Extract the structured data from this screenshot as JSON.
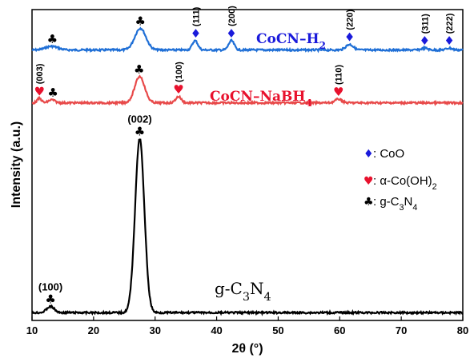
{
  "chart_data": {
    "type": "line",
    "xlabel": "2θ (°)",
    "ylabel": "Intensity (a.u.)",
    "xlim": [
      10,
      80
    ],
    "xticks": [
      10,
      20,
      30,
      40,
      50,
      60,
      70,
      80
    ],
    "grid": false,
    "legend_position": "middle-right",
    "legend": [
      {
        "symbol": "♦",
        "text": ": CoO",
        "color": "#1a1adb"
      },
      {
        "symbol": "♥",
        "text": ": α-Co(OH)",
        "sub": "2",
        "color": "#e8112d"
      },
      {
        "symbol": "♣",
        "text": ": g-C",
        "sub1": "3",
        "mid": "N",
        "sub2": "4",
        "color": "#000000"
      }
    ],
    "series": [
      {
        "name": "CoCN–H",
        "name_sub": "2",
        "color": "#1f6fd6",
        "baseline_frac": 0.13,
        "peaks": [
          [
            13.2,
            0.012,
            1.0
          ],
          [
            27.6,
            0.07,
            0.9
          ],
          [
            36.5,
            0.03,
            0.45
          ],
          [
            42.4,
            0.03,
            0.45
          ],
          [
            61.6,
            0.018,
            0.6
          ],
          [
            73.8,
            0.006,
            0.5
          ],
          [
            77.8,
            0.006,
            0.5
          ]
        ],
        "annotations": [
          {
            "x": 13.3,
            "sym": "♣",
            "color": "#000000"
          },
          {
            "x": 27.6,
            "sym": "♣",
            "color": "#000000"
          },
          {
            "x": 36.6,
            "sym": "♦",
            "color": "#1a1adb",
            "label": "(111)"
          },
          {
            "x": 42.4,
            "sym": "♦",
            "color": "#1a1adb",
            "label": "(200)"
          },
          {
            "x": 61.6,
            "sym": "♦",
            "color": "#1a1adb",
            "label": "(220)"
          },
          {
            "x": 73.8,
            "sym": "♦",
            "color": "#1a1adb",
            "label": "(311)"
          },
          {
            "x": 77.8,
            "sym": "♦",
            "color": "#1a1adb",
            "label": "(222)"
          }
        ]
      },
      {
        "name": "CoCN–NaBH",
        "name_sub": "4",
        "color": "#e84a4a",
        "baseline_frac": 0.3,
        "peaks": [
          [
            11.2,
            0.014,
            0.35
          ],
          [
            13.2,
            0.01,
            0.5
          ],
          [
            27.5,
            0.085,
            0.8
          ],
          [
            33.8,
            0.02,
            0.45
          ],
          [
            59.8,
            0.012,
            0.55
          ]
        ],
        "annotations": [
          {
            "x": 11.2,
            "sym": "♥",
            "color": "#e8112d",
            "label": "(003)"
          },
          {
            "x": 13.4,
            "sym": "♣",
            "color": "#000000"
          },
          {
            "x": 27.4,
            "sym": "♣",
            "color": "#000000"
          },
          {
            "x": 33.8,
            "sym": "♥",
            "color": "#e8112d",
            "label": "(100)"
          },
          {
            "x": 59.8,
            "sym": "♥",
            "color": "#e8112d",
            "label": "(110)"
          }
        ]
      },
      {
        "name": "g-C",
        "name_sub1": "3",
        "name_mid": "N",
        "name_sub2": "4",
        "color": "#000000",
        "baseline_frac": 0.975,
        "peaks": [
          [
            13.0,
            0.02,
            0.6
          ],
          [
            27.5,
            0.56,
            0.75
          ]
        ],
        "annotations": [
          {
            "x": 13.0,
            "sym": "♣",
            "color": "#000000",
            "label": "(100)"
          },
          {
            "x": 27.5,
            "sym": "♣",
            "color": "#000000",
            "label": "(002)"
          }
        ]
      }
    ]
  }
}
